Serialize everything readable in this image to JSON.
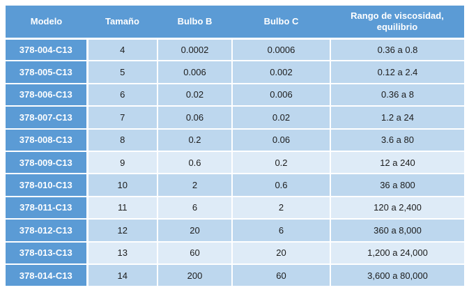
{
  "chart_data": {
    "type": "table",
    "title": "",
    "columns": [
      "Modelo",
      "Tamaño",
      "Bulbo B",
      "Bulbo C",
      "Rango de viscosidad, equilibrio"
    ],
    "rows": [
      [
        "378-004-C13",
        "4",
        "0.0002",
        "0.0006",
        "0.36 a 0.8"
      ],
      [
        "378-005-C13",
        "5",
        "0.006",
        "0.002",
        "0.12 a 2.4"
      ],
      [
        "378-006-C13",
        "6",
        "0.02",
        "0.006",
        "0.36 a 8"
      ],
      [
        "378-007-C13",
        "7",
        "0.06",
        "0.02",
        "1.2 a 24"
      ],
      [
        "378-008-C13",
        "8",
        "0.2",
        "0.06",
        "3.6 a 80"
      ],
      [
        "378-009-C13",
        "9",
        "0.6",
        "0.2",
        "12 a 240"
      ],
      [
        "378-010-C13",
        "10",
        "2",
        "0.6",
        "36 a 800"
      ],
      [
        "378-011-C13",
        "11",
        "6",
        "2",
        "120 a 2,400"
      ],
      [
        "378-012-C13",
        "12",
        "20",
        "6",
        "360 a 8,000"
      ],
      [
        "378-013-C13",
        "13",
        "60",
        "20",
        "1,200 a 24,000"
      ],
      [
        "378-014-C13",
        "14",
        "200",
        "60",
        "3,600 a 80,000"
      ]
    ]
  },
  "styles": {
    "light_row_indices": [
      5,
      7,
      9
    ],
    "colors": {
      "header_blue": "#5B9BD5",
      "cell_medium": "#BDD7EE",
      "cell_light": "#DEEBF7",
      "grid_white": "#FFFFFF",
      "text_dark": "#1C1C1C",
      "text_white": "#FFFFFF"
    }
  }
}
